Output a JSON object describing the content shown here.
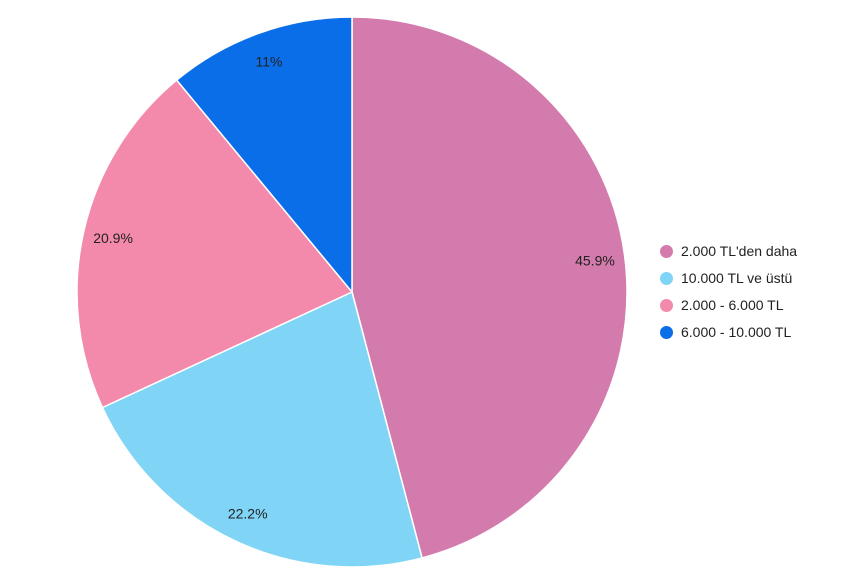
{
  "chart_data": {
    "type": "pie",
    "categories": [
      "2.000 TL'den daha",
      "10.000 TL ve üstü",
      "2.000 - 6.000 TL",
      "6.000 - 10.000 TL"
    ],
    "values": [
      45.9,
      22.2,
      20.9,
      11
    ],
    "labels": [
      "45.9%",
      "22.2%",
      "20.9%",
      "11%"
    ],
    "colors": [
      "#d47bad",
      "#80d4f6",
      "#f389ab",
      "#0a6ee8"
    ],
    "start_angle": "12 o'clock",
    "direction": "clockwise",
    "legend_position": "right"
  }
}
